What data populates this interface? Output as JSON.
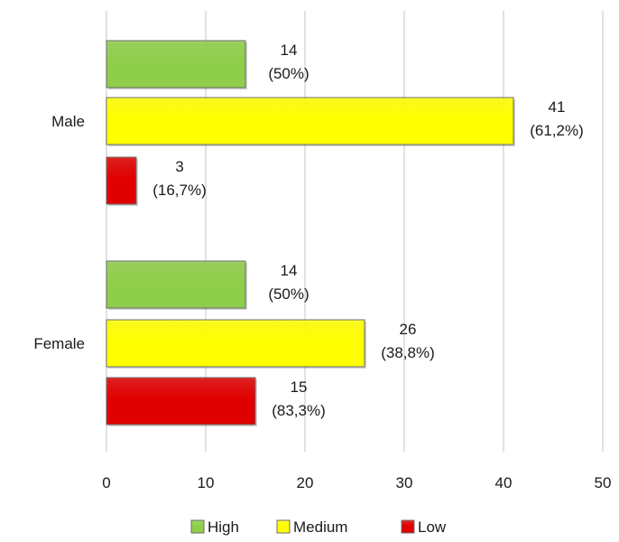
{
  "chart_data": {
    "type": "bar",
    "orientation": "horizontal",
    "categories": [
      "Male",
      "Female"
    ],
    "series": [
      {
        "name": "High",
        "color": "#8fce4a",
        "values": [
          14,
          14
        ],
        "labels": [
          "(50%)",
          "(50%)"
        ]
      },
      {
        "name": "Medium",
        "color": "#ffff00",
        "values": [
          41,
          26
        ],
        "labels": [
          "(61,2%)",
          "(38,8%)"
        ]
      },
      {
        "name": "Low",
        "color": "#e00000",
        "values": [
          3,
          15
        ],
        "labels": [
          "(16,7%)",
          "(83,3%)"
        ]
      }
    ],
    "xlim": [
      0,
      50
    ],
    "xticks": [
      "0",
      "10",
      "20",
      "30",
      "40",
      "50"
    ],
    "grid": "vertical",
    "legend": "bottom"
  }
}
